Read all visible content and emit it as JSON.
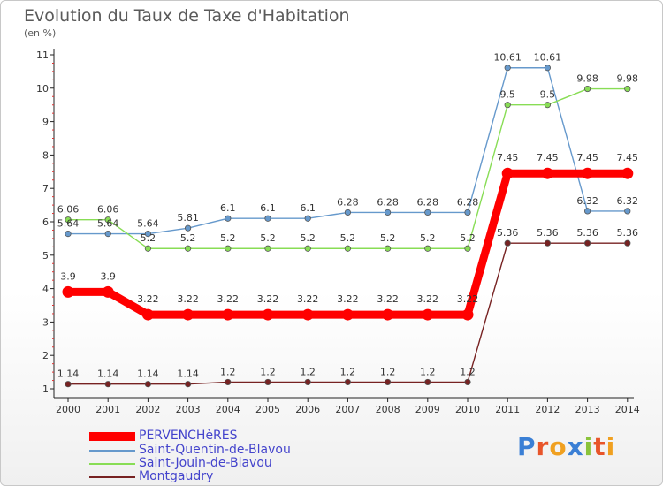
{
  "title": "Evolution du Taux de Taxe d'Habitation",
  "subtitle": "(en %)",
  "logo": {
    "text": "Proxiti",
    "colors": [
      "#3a7fd5",
      "#e8552a",
      "#f0a020",
      "#3a7fd5",
      "#8ac33a",
      "#e8552a",
      "#f0a020"
    ]
  },
  "chart_data": {
    "type": "line",
    "title": "Evolution du Taux de Taxe d'Habitation",
    "subtitle": "(en %)",
    "xlabel": "",
    "ylabel": "",
    "x": [
      "2000",
      "2001",
      "2002",
      "2003",
      "2004",
      "2005",
      "2006",
      "2007",
      "2008",
      "2009",
      "2010",
      "2011",
      "2012",
      "2013",
      "2014"
    ],
    "y_ticks": [
      "1",
      "2",
      "3",
      "4",
      "5",
      "6",
      "7",
      "8",
      "9",
      "10",
      "11"
    ],
    "ylim": [
      1,
      11
    ],
    "grid": false,
    "legend_position": "bottom-left",
    "series": [
      {
        "name": "PERVENCHèRES",
        "color": "#ff0000",
        "values": [
          3.9,
          3.9,
          3.22,
          3.22,
          3.22,
          3.22,
          3.22,
          3.22,
          3.22,
          3.22,
          3.22,
          7.45,
          7.45,
          7.45,
          7.45
        ],
        "labels": [
          "3.9",
          "3.9",
          "3.22",
          "3.22",
          "3.22",
          "3.22",
          "3.22",
          "3.22",
          "3.22",
          "3.22",
          "3.22",
          "7.45",
          "7.45",
          "7.45",
          "7.45"
        ]
      },
      {
        "name": "Saint-Quentin-de-Blavou",
        "color": "#6699cc",
        "values": [
          5.64,
          5.64,
          5.64,
          5.81,
          6.1,
          6.1,
          6.1,
          6.28,
          6.28,
          6.28,
          6.28,
          10.61,
          10.61,
          6.32,
          6.32
        ],
        "labels": [
          "5.64",
          "5.64",
          "5.64",
          "5.81",
          "6.1",
          "6.1",
          "6.1",
          "6.28",
          "6.28",
          "6.28",
          "6.28",
          "10.61",
          "10.61",
          "6.32",
          "6.32"
        ]
      },
      {
        "name": "Saint-Jouin-de-Blavou",
        "color": "#88dd55",
        "values": [
          6.06,
          6.06,
          5.2,
          5.2,
          5.2,
          5.2,
          5.2,
          5.2,
          5.2,
          5.2,
          5.2,
          9.5,
          9.5,
          9.98,
          9.98
        ],
        "labels": [
          "6.06",
          "6.06",
          "5.2",
          "5.2",
          "5.2",
          "5.2",
          "5.2",
          "5.2",
          "5.2",
          "5.2",
          "5.2",
          "9.5",
          "9.5",
          "9.98",
          "9.98"
        ]
      },
      {
        "name": "Montgaudry",
        "color": "#772222",
        "values": [
          1.14,
          1.14,
          1.14,
          1.14,
          1.2,
          1.2,
          1.2,
          1.2,
          1.2,
          1.2,
          1.2,
          5.36,
          5.36,
          5.36,
          5.36
        ],
        "labels": [
          "1.14",
          "1.14",
          "1.14",
          "1.14",
          "1.2",
          "1.2",
          "1.2",
          "1.2",
          "1.2",
          "1.2",
          "1.2",
          "5.36",
          "5.36",
          "5.36",
          "5.36"
        ]
      }
    ]
  }
}
